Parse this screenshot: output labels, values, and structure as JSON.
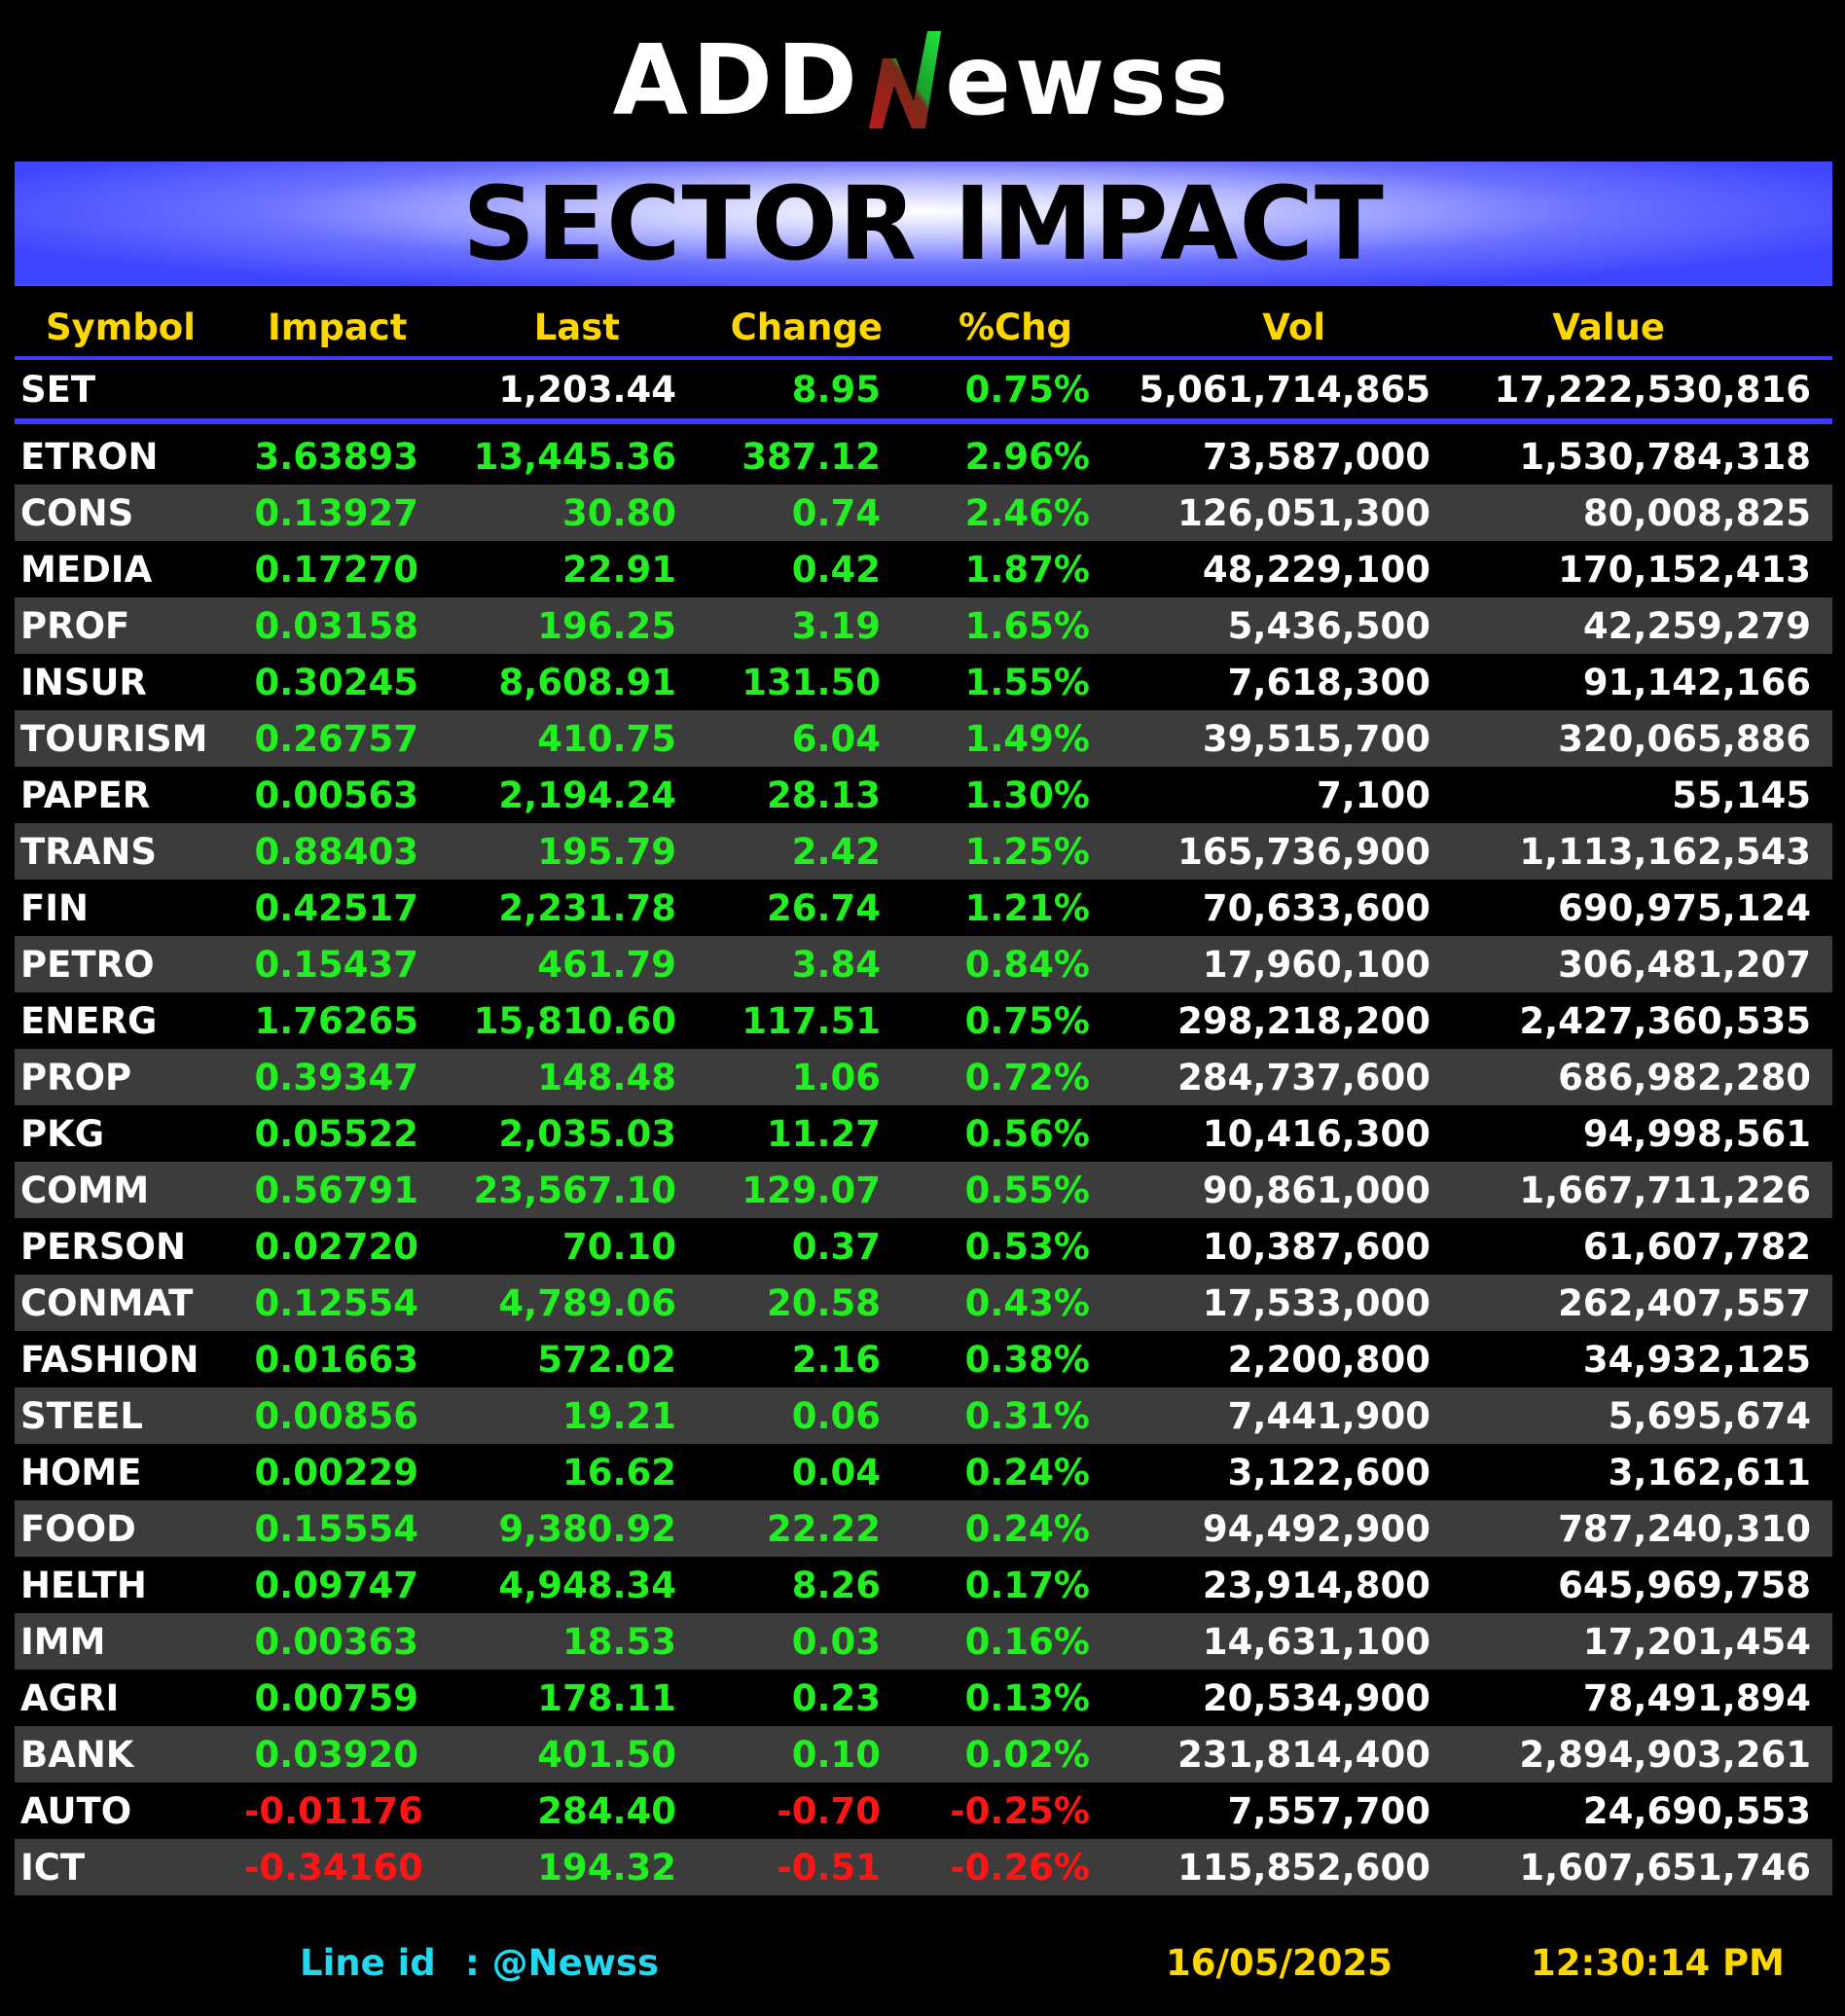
{
  "logo": {
    "part1": "ADD",
    "part2": "N",
    "part3": "ewss"
  },
  "banner": {
    "title": "SECTOR IMPACT"
  },
  "table": {
    "headers": [
      "Symbol",
      "Impact",
      "Last",
      "Change",
      "%Chg",
      "Vol",
      "Value"
    ],
    "set": {
      "symbol": "SET",
      "impact": "",
      "last": "1,203.44",
      "change": "8.95",
      "pct": "0.75%",
      "vol": "5,061,714,865",
      "value": "17,222,530,816"
    },
    "rows": [
      {
        "symbol": "ETRON",
        "impact": "3.63893",
        "last": "13,445.36",
        "change": "387.12",
        "pct": "2.96%",
        "vol": "73,587,000",
        "value": "1,530,784,318"
      },
      {
        "symbol": "CONS",
        "impact": "0.13927",
        "last": "30.80",
        "change": "0.74",
        "pct": "2.46%",
        "vol": "126,051,300",
        "value": "80,008,825"
      },
      {
        "symbol": "MEDIA",
        "impact": "0.17270",
        "last": "22.91",
        "change": "0.42",
        "pct": "1.87%",
        "vol": "48,229,100",
        "value": "170,152,413"
      },
      {
        "symbol": "PROF",
        "impact": "0.03158",
        "last": "196.25",
        "change": "3.19",
        "pct": "1.65%",
        "vol": "5,436,500",
        "value": "42,259,279"
      },
      {
        "symbol": "INSUR",
        "impact": "0.30245",
        "last": "8,608.91",
        "change": "131.50",
        "pct": "1.55%",
        "vol": "7,618,300",
        "value": "91,142,166"
      },
      {
        "symbol": "TOURISM",
        "impact": "0.26757",
        "last": "410.75",
        "change": "6.04",
        "pct": "1.49%",
        "vol": "39,515,700",
        "value": "320,065,886"
      },
      {
        "symbol": "PAPER",
        "impact": "0.00563",
        "last": "2,194.24",
        "change": "28.13",
        "pct": "1.30%",
        "vol": "7,100",
        "value": "55,145"
      },
      {
        "symbol": "TRANS",
        "impact": "0.88403",
        "last": "195.79",
        "change": "2.42",
        "pct": "1.25%",
        "vol": "165,736,900",
        "value": "1,113,162,543"
      },
      {
        "symbol": "FIN",
        "impact": "0.42517",
        "last": "2,231.78",
        "change": "26.74",
        "pct": "1.21%",
        "vol": "70,633,600",
        "value": "690,975,124"
      },
      {
        "symbol": "PETRO",
        "impact": "0.15437",
        "last": "461.79",
        "change": "3.84",
        "pct": "0.84%",
        "vol": "17,960,100",
        "value": "306,481,207"
      },
      {
        "symbol": "ENERG",
        "impact": "1.76265",
        "last": "15,810.60",
        "change": "117.51",
        "pct": "0.75%",
        "vol": "298,218,200",
        "value": "2,427,360,535"
      },
      {
        "symbol": "PROP",
        "impact": "0.39347",
        "last": "148.48",
        "change": "1.06",
        "pct": "0.72%",
        "vol": "284,737,600",
        "value": "686,982,280"
      },
      {
        "symbol": "PKG",
        "impact": "0.05522",
        "last": "2,035.03",
        "change": "11.27",
        "pct": "0.56%",
        "vol": "10,416,300",
        "value": "94,998,561"
      },
      {
        "symbol": "COMM",
        "impact": "0.56791",
        "last": "23,567.10",
        "change": "129.07",
        "pct": "0.55%",
        "vol": "90,861,000",
        "value": "1,667,711,226"
      },
      {
        "symbol": "PERSON",
        "impact": "0.02720",
        "last": "70.10",
        "change": "0.37",
        "pct": "0.53%",
        "vol": "10,387,600",
        "value": "61,607,782"
      },
      {
        "symbol": "CONMAT",
        "impact": "0.12554",
        "last": "4,789.06",
        "change": "20.58",
        "pct": "0.43%",
        "vol": "17,533,000",
        "value": "262,407,557"
      },
      {
        "symbol": "FASHION",
        "impact": "0.01663",
        "last": "572.02",
        "change": "2.16",
        "pct": "0.38%",
        "vol": "2,200,800",
        "value": "34,932,125"
      },
      {
        "symbol": "STEEL",
        "impact": "0.00856",
        "last": "19.21",
        "change": "0.06",
        "pct": "0.31%",
        "vol": "7,441,900",
        "value": "5,695,674"
      },
      {
        "symbol": "HOME",
        "impact": "0.00229",
        "last": "16.62",
        "change": "0.04",
        "pct": "0.24%",
        "vol": "3,122,600",
        "value": "3,162,611"
      },
      {
        "symbol": "FOOD",
        "impact": "0.15554",
        "last": "9,380.92",
        "change": "22.22",
        "pct": "0.24%",
        "vol": "94,492,900",
        "value": "787,240,310"
      },
      {
        "symbol": "HELTH",
        "impact": "0.09747",
        "last": "4,948.34",
        "change": "8.26",
        "pct": "0.17%",
        "vol": "23,914,800",
        "value": "645,969,758"
      },
      {
        "symbol": "IMM",
        "impact": "0.00363",
        "last": "18.53",
        "change": "0.03",
        "pct": "0.16%",
        "vol": "14,631,100",
        "value": "17,201,454"
      },
      {
        "symbol": "AGRI",
        "impact": "0.00759",
        "last": "178.11",
        "change": "0.23",
        "pct": "0.13%",
        "vol": "20,534,900",
        "value": "78,491,894"
      },
      {
        "symbol": "BANK",
        "impact": "0.03920",
        "last": "401.50",
        "change": "0.10",
        "pct": "0.02%",
        "vol": "231,814,400",
        "value": "2,894,903,261"
      },
      {
        "symbol": "AUTO",
        "impact": "-0.01176",
        "last": "284.40",
        "change": "-0.70",
        "pct": "-0.25%",
        "vol": "7,557,700",
        "value": "24,690,553"
      },
      {
        "symbol": "ICT",
        "impact": "-0.34160",
        "last": "194.32",
        "change": "-0.51",
        "pct": "-0.26%",
        "vol": "115,852,600",
        "value": "1,607,651,746"
      }
    ]
  },
  "footer": {
    "line_label": "Line id",
    "line_id": ": @Newss",
    "date": "16/05/2025",
    "time": "12:30:14 PM"
  },
  "colors": {
    "positive": "#22ee22",
    "negative": "#ff1515",
    "header_text": "#ffd700",
    "banner_blue": "#3f44ff",
    "footer_cyan": "#22d7ee"
  }
}
